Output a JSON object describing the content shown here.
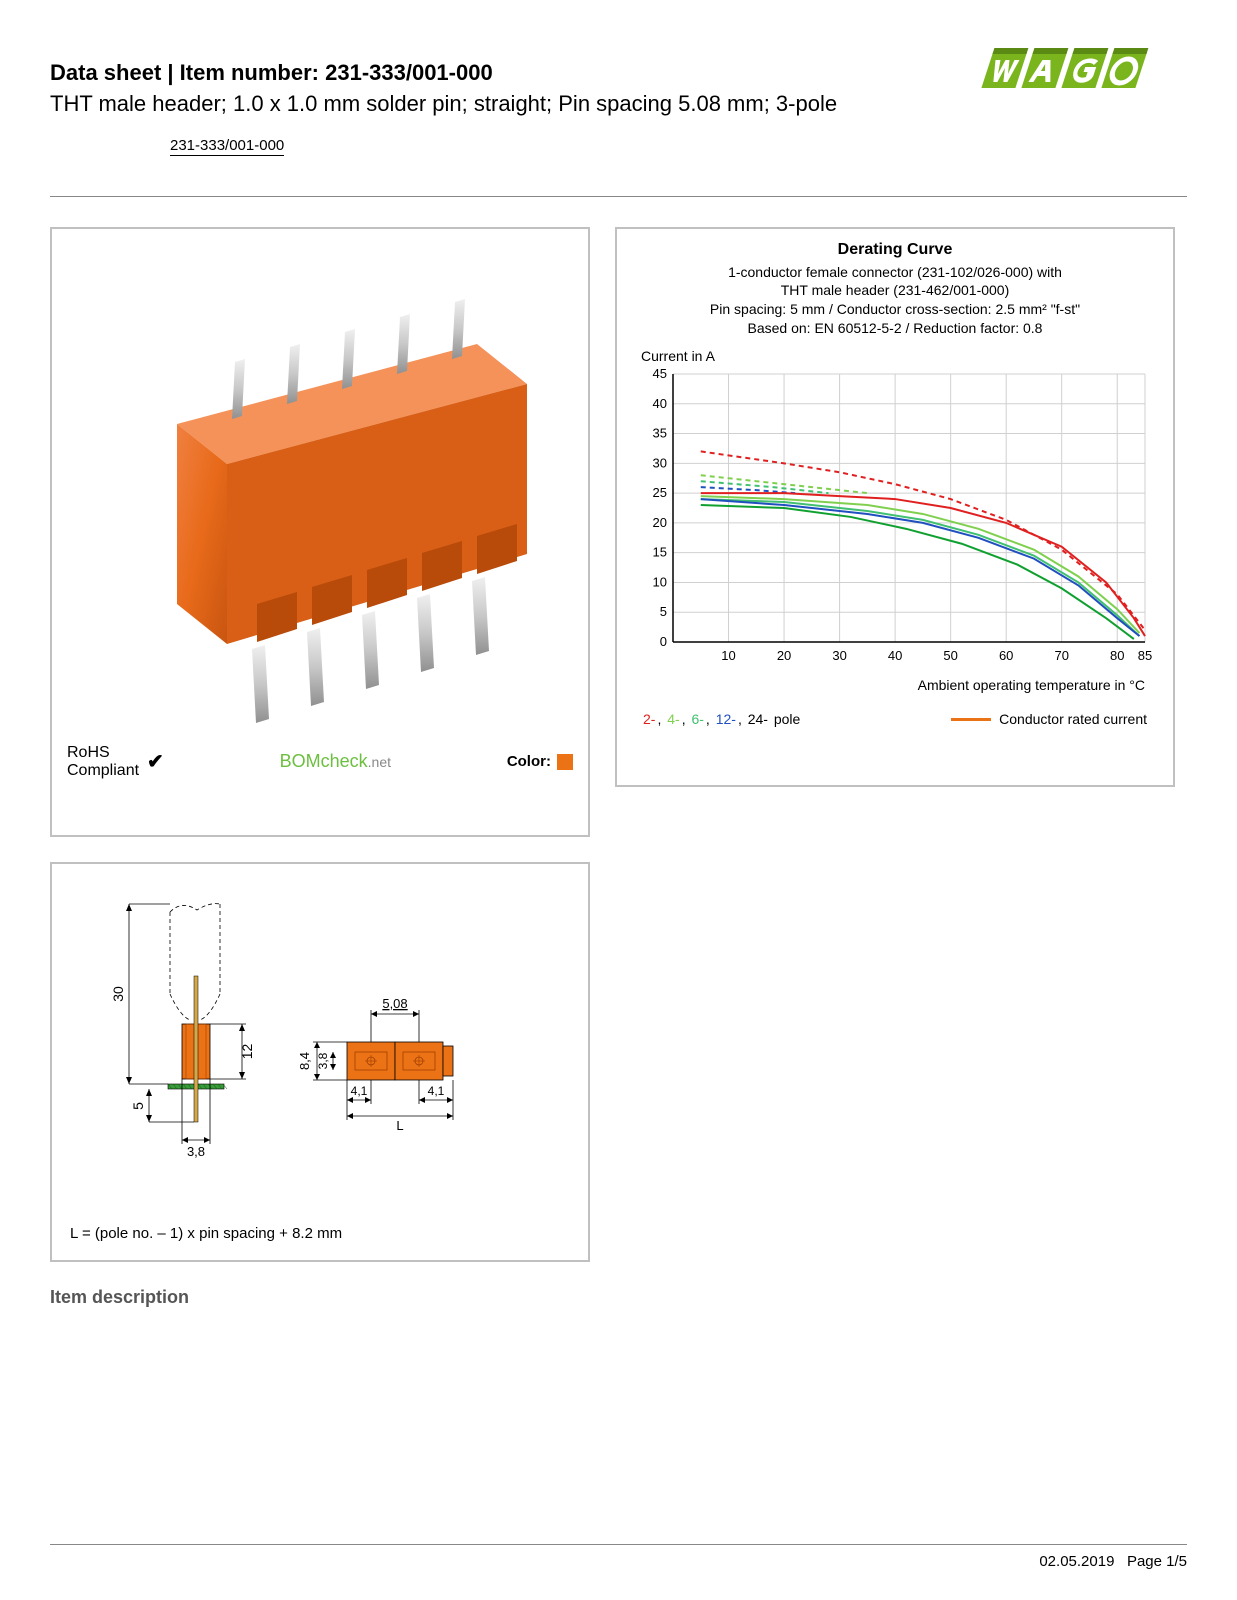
{
  "header": {
    "title_prefix": "Data sheet  |  Item number: ",
    "item_number": "231-333/001-000",
    "subtitle": "THT male header; 1.0 x 1.0 mm solder pin; straight; Pin spacing 5.08 mm; 3-pole",
    "item_link": "231-333/001-000"
  },
  "logo": {
    "text": "WAGO",
    "color_primary": "#7ab51d",
    "color_shadow": "#5a8a14"
  },
  "product_panel": {
    "connector_color": "#e86a1a",
    "pin_color": "#d8d8d8",
    "rohs_label": "RoHS\nCompliant",
    "bomcheck_text": "BOMcheck",
    "bomcheck_suffix": ".net",
    "color_label": "Color:",
    "color_swatch": "#ec7216"
  },
  "chart": {
    "title": "Derating Curve",
    "sub1": "1-conductor female connector (231-102/026-000) with",
    "sub2": "THT male header (231-462/001-000)",
    "sub3_html": "Pin spacing: 5 mm / Conductor cross-section: 2.5 mm² \"f-st\"",
    "sub4": "Based on: EN 60512-5-2 / Reduction factor: 0.8",
    "ylabel": "Current in A",
    "xlabel": "Ambient operating temperature in °C",
    "ylim": [
      0,
      45
    ],
    "ytick_step": 5,
    "xlim": [
      0,
      85
    ],
    "xticks": [
      10,
      20,
      30,
      40,
      50,
      60,
      70,
      80,
      85
    ],
    "grid_color": "#d0d0d0",
    "axis_color": "#000000",
    "background_color": "#ffffff",
    "series": [
      {
        "name": "2-pole-dash",
        "color": "#e02020",
        "dash": true,
        "data": [
          [
            5,
            32
          ],
          [
            20,
            30
          ],
          [
            30,
            28.5
          ],
          [
            40,
            26.5
          ],
          [
            50,
            24
          ],
          [
            60,
            20.5
          ],
          [
            70,
            15.5
          ],
          [
            80,
            8
          ],
          [
            85,
            2
          ]
        ]
      },
      {
        "name": "4-pole-dash",
        "color": "#80d050",
        "dash": true,
        "data": [
          [
            5,
            28
          ],
          [
            15,
            27
          ],
          [
            25,
            26
          ],
          [
            35,
            25
          ]
        ]
      },
      {
        "name": "6-pole-dash",
        "color": "#40c070",
        "dash": true,
        "data": [
          [
            5,
            27
          ],
          [
            18,
            26
          ],
          [
            28,
            25
          ]
        ]
      },
      {
        "name": "12-pole-dash",
        "color": "#2050c0",
        "dash": true,
        "data": [
          [
            5,
            26
          ],
          [
            15,
            25.5
          ],
          [
            22,
            25
          ]
        ]
      },
      {
        "name": "2-pole",
        "color": "#e02020",
        "dash": false,
        "data": [
          [
            5,
            25
          ],
          [
            20,
            25
          ],
          [
            30,
            24.5
          ],
          [
            40,
            24
          ],
          [
            50,
            22.5
          ],
          [
            60,
            20
          ],
          [
            70,
            16
          ],
          [
            78,
            10
          ],
          [
            83,
            4
          ],
          [
            85,
            1
          ]
        ]
      },
      {
        "name": "4-pole",
        "color": "#80d050",
        "dash": false,
        "data": [
          [
            5,
            24.5
          ],
          [
            20,
            24
          ],
          [
            35,
            23
          ],
          [
            45,
            21.5
          ],
          [
            55,
            19
          ],
          [
            65,
            15.5
          ],
          [
            73,
            11
          ],
          [
            80,
            5.5
          ],
          [
            84,
            1.5
          ]
        ]
      },
      {
        "name": "6-pole",
        "color": "#40c070",
        "dash": false,
        "data": [
          [
            5,
            24
          ],
          [
            20,
            23.5
          ],
          [
            35,
            22
          ],
          [
            45,
            20.5
          ],
          [
            55,
            18
          ],
          [
            65,
            14.5
          ],
          [
            73,
            10
          ],
          [
            80,
            4.5
          ],
          [
            84,
            1
          ]
        ]
      },
      {
        "name": "12-pole",
        "color": "#2050c0",
        "dash": false,
        "data": [
          [
            5,
            24
          ],
          [
            20,
            23
          ],
          [
            35,
            21.5
          ],
          [
            45,
            20
          ],
          [
            55,
            17.5
          ],
          [
            65,
            14
          ],
          [
            73,
            9.5
          ],
          [
            80,
            4
          ],
          [
            84,
            1
          ]
        ]
      },
      {
        "name": "24-pole",
        "color": "#10a030",
        "dash": false,
        "data": [
          [
            5,
            23
          ],
          [
            20,
            22.5
          ],
          [
            32,
            21
          ],
          [
            42,
            19
          ],
          [
            52,
            16.5
          ],
          [
            62,
            13
          ],
          [
            70,
            9
          ],
          [
            78,
            4
          ],
          [
            83,
            0.5
          ]
        ]
      }
    ],
    "legend_poles": [
      {
        "label": "2-",
        "color": "#e02020"
      },
      {
        "label": "4-",
        "color": "#80d050"
      },
      {
        "label": "6-",
        "color": "#40c070"
      },
      {
        "label": "12-",
        "color": "#2050c0"
      },
      {
        "label": "24-",
        "color": "#000000"
      }
    ],
    "legend_poles_suffix": " pole",
    "legend_conductor": "Conductor rated current",
    "conductor_color": "#ec7216"
  },
  "tech_drawing": {
    "dims": {
      "height_total": "30",
      "height_body": "12",
      "pin_below": "5",
      "pin_width": "3,8",
      "pitch": "5,08",
      "body_h": "8,4",
      "body_inner": "3,8",
      "side_w": "4,1",
      "length_var": "L"
    },
    "body_color": "#ec7216",
    "pcb_color": "#3a9b3a",
    "pin_color": "#d4a84a",
    "line_color": "#000000",
    "formula": "L = (pole no. – 1) x pin spacing + 8.2 mm"
  },
  "section": {
    "item_description": "Item description"
  },
  "footer": {
    "date": "02.05.2019",
    "page": "Page 1/5"
  }
}
